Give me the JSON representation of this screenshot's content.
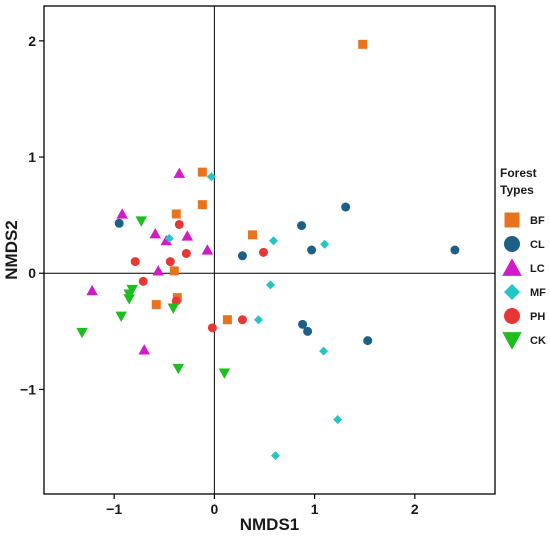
{
  "chart_data": {
    "type": "scatter",
    "title": "",
    "xlabel": "NMDS1",
    "ylabel": "NMDS2",
    "xlim": [
      -1.7,
      2.8
    ],
    "ylim": [
      -1.9,
      2.3
    ],
    "x_ticks": [
      -1,
      0,
      1,
      2
    ],
    "y_ticks": [
      -1,
      0,
      1,
      2
    ],
    "reference_lines": {
      "x": 0,
      "y": 0
    },
    "grid": false,
    "legend": {
      "title_lines": [
        "Forest",
        "Types"
      ],
      "placement": "right"
    },
    "series": [
      {
        "name": "BF",
        "shape": "square",
        "color": "#E8731F",
        "points": [
          [
            1.48,
            1.97
          ],
          [
            -0.12,
            0.87
          ],
          [
            -0.38,
            0.51
          ],
          [
            -0.12,
            0.59
          ],
          [
            0.38,
            0.33
          ],
          [
            -0.4,
            0.02
          ],
          [
            -0.37,
            -0.21
          ],
          [
            -0.58,
            -0.27
          ],
          [
            0.13,
            -0.4
          ]
        ]
      },
      {
        "name": "CL",
        "shape": "circle",
        "color": "#1C5F87",
        "points": [
          [
            -0.95,
            0.43
          ],
          [
            1.31,
            0.57
          ],
          [
            0.87,
            0.41
          ],
          [
            0.97,
            0.2
          ],
          [
            2.4,
            0.2
          ],
          [
            0.28,
            0.15
          ],
          [
            0.88,
            -0.44
          ],
          [
            0.93,
            -0.5
          ],
          [
            1.53,
            -0.58
          ]
        ]
      },
      {
        "name": "LC",
        "shape": "triangle-up",
        "color": "#D11BC9",
        "points": [
          [
            -0.35,
            0.86
          ],
          [
            -0.92,
            0.51
          ],
          [
            -0.59,
            0.34
          ],
          [
            -0.27,
            0.32
          ],
          [
            -0.48,
            0.28
          ],
          [
            -0.07,
            0.2
          ],
          [
            -0.56,
            0.02
          ],
          [
            -1.22,
            -0.15
          ],
          [
            -0.7,
            -0.66
          ]
        ]
      },
      {
        "name": "MF",
        "shape": "diamond",
        "color": "#23C6C6",
        "points": [
          [
            -0.03,
            0.83
          ],
          [
            -0.45,
            0.3
          ],
          [
            0.59,
            0.28
          ],
          [
            1.1,
            0.25
          ],
          [
            0.56,
            -0.1
          ],
          [
            0.44,
            -0.4
          ],
          [
            1.09,
            -0.67
          ],
          [
            1.23,
            -1.26
          ],
          [
            0.61,
            -1.57
          ]
        ]
      },
      {
        "name": "PH",
        "shape": "circle",
        "color": "#E83535",
        "points": [
          [
            -0.35,
            0.42
          ],
          [
            -0.28,
            0.17
          ],
          [
            -0.79,
            0.1
          ],
          [
            -0.44,
            0.1
          ],
          [
            0.49,
            0.18
          ],
          [
            -0.71,
            -0.07
          ],
          [
            -0.38,
            -0.24
          ],
          [
            -0.02,
            -0.47
          ],
          [
            0.28,
            -0.4
          ]
        ]
      },
      {
        "name": "CK",
        "shape": "triangle-down",
        "color": "#1EBE1E",
        "points": [
          [
            -0.73,
            0.45
          ],
          [
            -0.82,
            -0.14
          ],
          [
            -0.85,
            -0.18
          ],
          [
            -0.85,
            -0.22
          ],
          [
            -0.41,
            -0.3
          ],
          [
            -0.93,
            -0.37
          ],
          [
            -1.32,
            -0.51
          ],
          [
            -0.36,
            -0.82
          ],
          [
            0.1,
            -0.86
          ]
        ]
      }
    ]
  }
}
